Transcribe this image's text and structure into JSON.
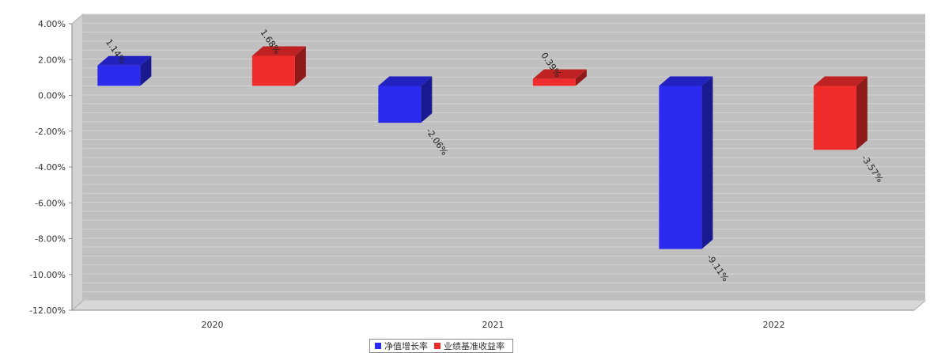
{
  "chart_data": {
    "type": "bar",
    "categories": [
      "2020",
      "2021",
      "2022"
    ],
    "series": [
      {
        "name": "净值增长率",
        "color": "#2b2bf0",
        "values": [
          1.14,
          -2.06,
          -9.11
        ],
        "labels": [
          "1.14%",
          "-2.06%",
          "-9.11%"
        ]
      },
      {
        "name": "业绩基准收益率",
        "color": "#ef2b2b",
        "values": [
          1.68,
          0.39,
          -3.57
        ],
        "labels": [
          "1.68%",
          "0.39%",
          "-3.57%"
        ]
      }
    ],
    "ylim": [
      -12,
      4
    ],
    "yticks": [
      "4.00%",
      "2.00%",
      "0.00%",
      "-2.00%",
      "-4.00%",
      "-6.00%",
      "-8.00%",
      "-10.00%",
      "-12.00%"
    ],
    "ytick_values": [
      4,
      2,
      0,
      -2,
      -4,
      -6,
      -8,
      -10,
      -12
    ],
    "grid": true,
    "legend_position": "bottom-center",
    "three_d": true
  }
}
